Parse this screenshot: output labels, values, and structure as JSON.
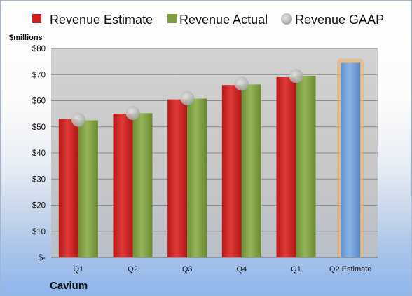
{
  "chart_data": {
    "type": "bar",
    "company": "Cavium",
    "unit_label": "$millions",
    "categories": [
      "Q1",
      "Q2",
      "Q3",
      "Q4",
      "Q1",
      "Q2 Estimate"
    ],
    "series": [
      {
        "name": "Revenue Estimate",
        "kind": "bar",
        "color": "#cc2222",
        "values": [
          53,
          55,
          60.5,
          66,
          69,
          null
        ]
      },
      {
        "name": "Revenue Actual",
        "kind": "bar",
        "color": "#7f9f3f",
        "values": [
          52.5,
          55.2,
          60.8,
          66.2,
          69.5,
          null
        ]
      },
      {
        "name": "Revenue GAAP",
        "kind": "marker",
        "color": "#b6b6b6",
        "values": [
          52.7,
          55.3,
          61,
          66.5,
          69.4,
          null
        ]
      }
    ],
    "forecast": {
      "category": "Q2 Estimate",
      "value": 74.5,
      "color": "#6f9fd8",
      "glow": "#f0b060"
    },
    "ylim": [
      0,
      80
    ],
    "yticks": [
      {
        "value": 0,
        "label": "$-"
      },
      {
        "value": 10,
        "label": "$10"
      },
      {
        "value": 20,
        "label": "$20"
      },
      {
        "value": 30,
        "label": "$30"
      },
      {
        "value": 40,
        "label": "$40"
      },
      {
        "value": 50,
        "label": "$50"
      },
      {
        "value": 60,
        "label": "$60"
      },
      {
        "value": 70,
        "label": "$70"
      },
      {
        "value": 80,
        "label": "$80"
      }
    ],
    "grid": true,
    "legend": "top",
    "plot_background": "#cdcdcd"
  }
}
